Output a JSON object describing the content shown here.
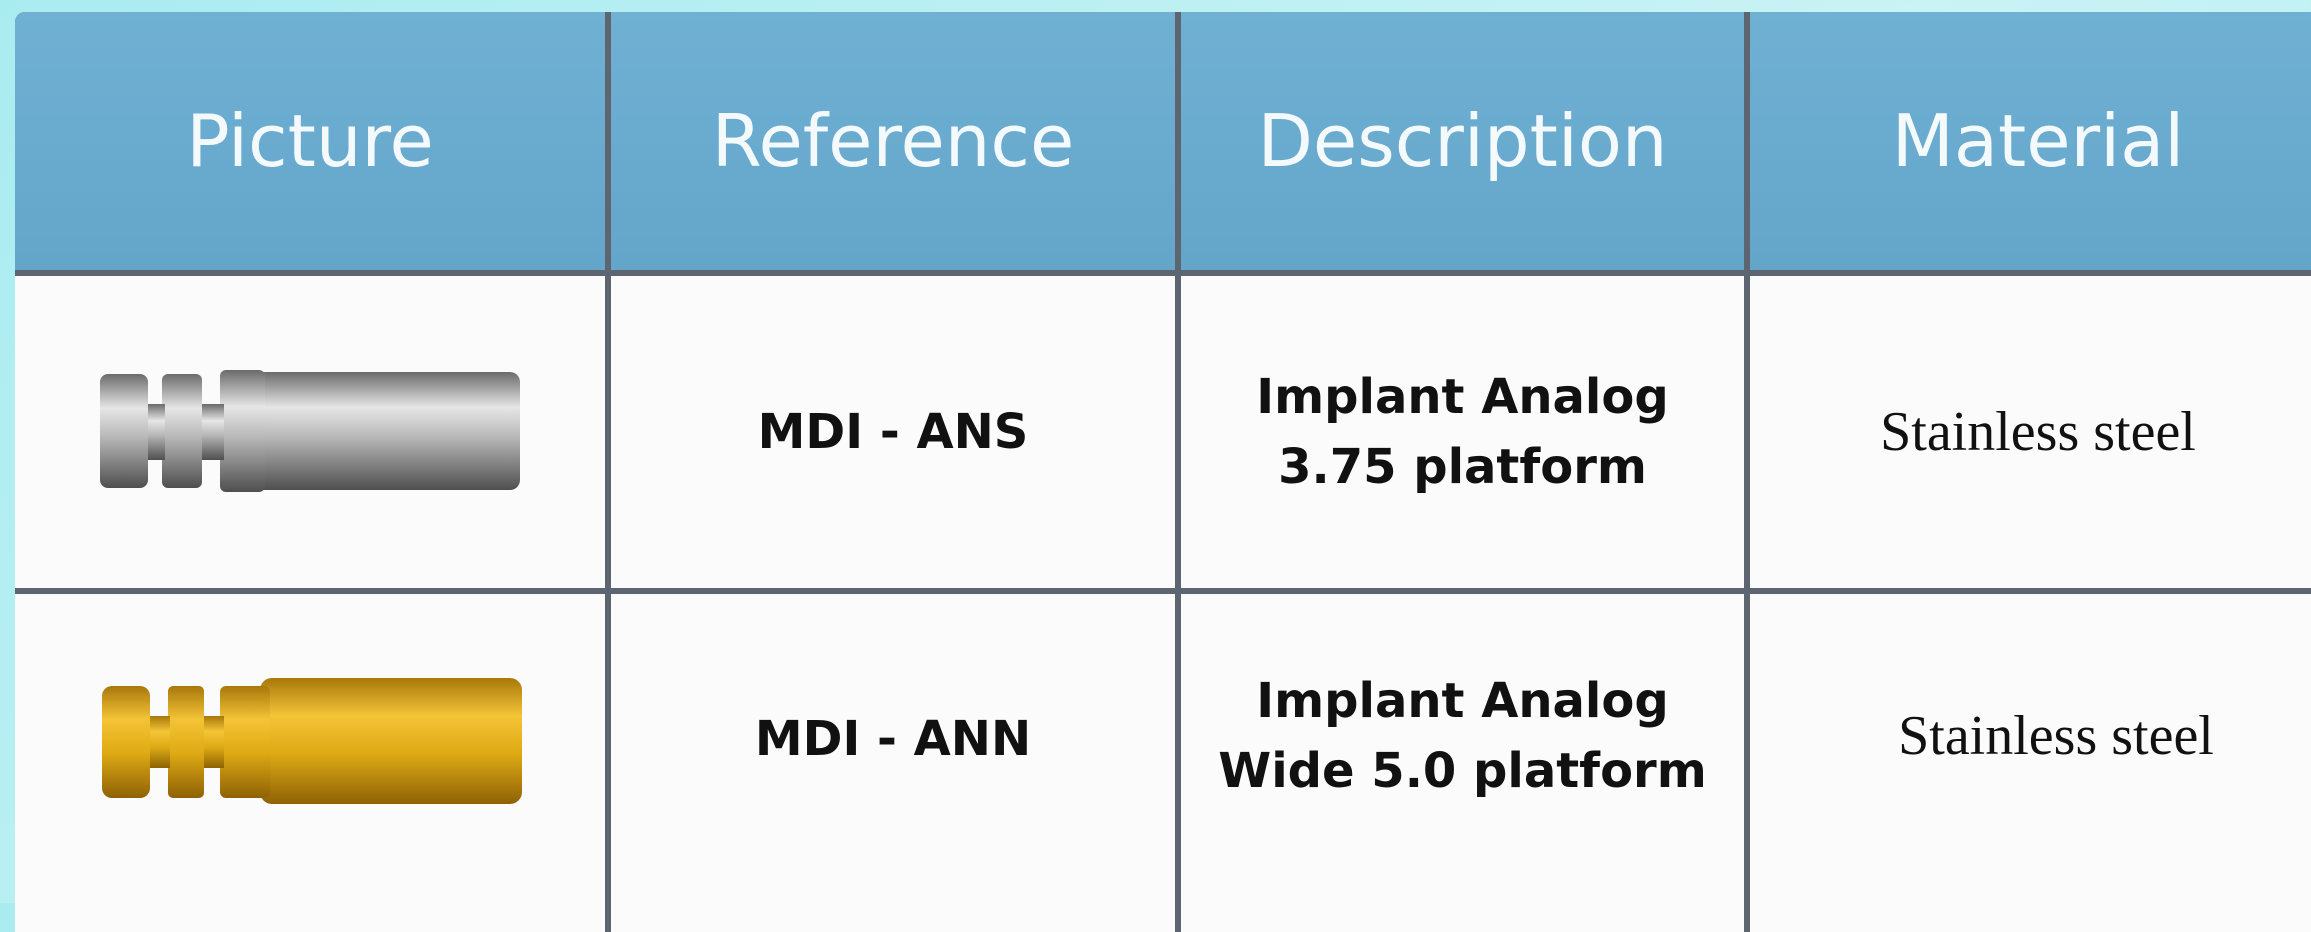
{
  "table": {
    "header": [
      "Picture",
      "Reference",
      "Description",
      "Material"
    ],
    "rows": [
      {
        "reference": "MDI - ANS",
        "description": [
          "Implant Analog",
          "3.75 platform"
        ],
        "material": "Stainless steel"
      },
      {
        "reference": "MDI - ANN",
        "description": [
          "Implant Analog",
          "Wide 5.0 platform"
        ],
        "material": "Stainless steel"
      }
    ]
  }
}
